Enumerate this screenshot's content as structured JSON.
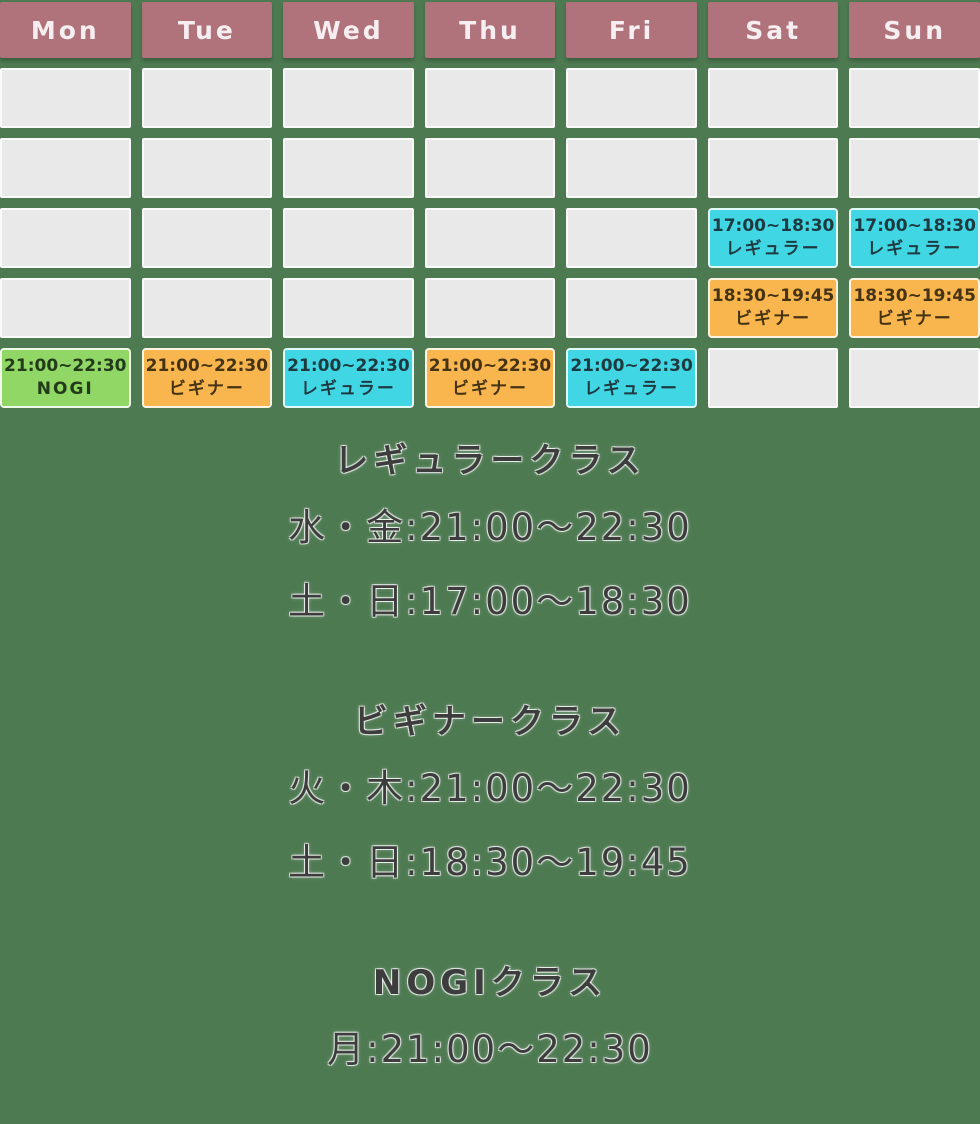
{
  "colors": {
    "background": "#4e7a52",
    "day_header_bg": "#b0737c",
    "day_header_text": "#f6eef0",
    "empty_cell_bg": "#e9e9e9",
    "regular": "#41d6e3",
    "beginner": "#f9b64e",
    "nogi": "#90d765",
    "section_text": "#3d3d3d"
  },
  "days": [
    "Mon",
    "Tue",
    "Wed",
    "Thu",
    "Fri",
    "Sat",
    "Sun"
  ],
  "grid": {
    "rows": [
      [
        null,
        null,
        null,
        null,
        null,
        null,
        null
      ],
      [
        null,
        null,
        null,
        null,
        null,
        null,
        null
      ],
      [
        null,
        null,
        null,
        null,
        null,
        {
          "time": "17:00~18:30",
          "label": "レギュラー",
          "type": "regular"
        },
        {
          "time": "17:00~18:30",
          "label": "レギュラー",
          "type": "regular"
        }
      ],
      [
        null,
        null,
        null,
        null,
        null,
        {
          "time": "18:30~19:45",
          "label": "ビギナー",
          "type": "beginner"
        },
        {
          "time": "18:30~19:45",
          "label": "ビギナー",
          "type": "beginner"
        }
      ],
      [
        {
          "time": "21:00~22:30",
          "label": "NOGI",
          "type": "nogi"
        },
        {
          "time": "21:00~22:30",
          "label": "ビギナー",
          "type": "beginner"
        },
        {
          "time": "21:00~22:30",
          "label": "レギュラー",
          "type": "regular"
        },
        {
          "time": "21:00~22:30",
          "label": "ビギナー",
          "type": "beginner"
        },
        {
          "time": "21:00~22:30",
          "label": "レギュラー",
          "type": "regular"
        },
        null,
        null
      ]
    ]
  },
  "sections": [
    {
      "title": "レギュラークラス",
      "lines": [
        "水・金:21:00〜22:30",
        "土・日:17:00〜18:30"
      ]
    },
    {
      "title": "ビギナークラス",
      "lines": [
        "火・木:21:00〜22:30",
        "土・日:18:30〜19:45"
      ]
    },
    {
      "title": "NOGIクラス",
      "lines": [
        "月:21:00〜22:30"
      ]
    }
  ],
  "chart_data": {
    "type": "table",
    "columns": [
      "Mon",
      "Tue",
      "Wed",
      "Thu",
      "Fri",
      "Sat",
      "Sun"
    ],
    "classes": [
      {
        "name": "レギュラー",
        "color": "#41d6e3",
        "schedule": [
          {
            "days": [
              "Wed",
              "Fri"
            ],
            "time": "21:00〜22:30"
          },
          {
            "days": [
              "Sat",
              "Sun"
            ],
            "time": "17:00〜18:30"
          }
        ]
      },
      {
        "name": "ビギナー",
        "color": "#f9b64e",
        "schedule": [
          {
            "days": [
              "Tue",
              "Thu"
            ],
            "time": "21:00〜22:30"
          },
          {
            "days": [
              "Sat",
              "Sun"
            ],
            "time": "18:30〜19:45"
          }
        ]
      },
      {
        "name": "NOGI",
        "color": "#90d765",
        "schedule": [
          {
            "days": [
              "Mon"
            ],
            "time": "21:00〜22:30"
          }
        ]
      }
    ]
  }
}
